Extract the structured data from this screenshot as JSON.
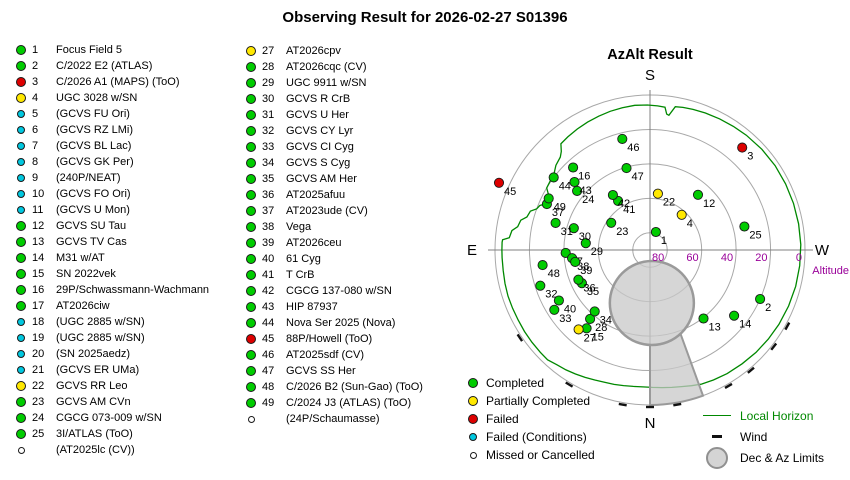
{
  "title": "Observing Result for 2026-02-27 S01396",
  "colors": {
    "completed": "#00CC00",
    "partial": "#FFE800",
    "failed": "#DD0000",
    "conditions": "#00C8E0",
    "missed": "#FFFFFF",
    "dot_border": "#1a1a1a",
    "horizon": "#008800",
    "grid": "#A8A8A8",
    "axis": "#808080",
    "altitude_text": "#990099",
    "limits_fill": "rgba(200,200,200,0.75)",
    "limits_stroke": "#9a9a9a"
  },
  "target_list": {
    "column1": [
      {
        "num": "1",
        "name": "Focus Field 5",
        "status": "completed"
      },
      {
        "num": "2",
        "name": "C/2022 E2 (ATLAS)",
        "status": "completed"
      },
      {
        "num": "3",
        "name": "C/2026 A1 (MAPS) (ToO)",
        "status": "failed"
      },
      {
        "num": "4",
        "name": "UGC 3028 w/SN",
        "status": "partial"
      },
      {
        "num": "5",
        "name": "(GCVS FU Ori)",
        "status": "conditions"
      },
      {
        "num": "6",
        "name": "(GCVS RZ LMi)",
        "status": "conditions"
      },
      {
        "num": "7",
        "name": "(GCVS BL Lac)",
        "status": "conditions"
      },
      {
        "num": "8",
        "name": "(GCVS GK Per)",
        "status": "conditions"
      },
      {
        "num": "9",
        "name": "(240P/NEAT)",
        "status": "conditions"
      },
      {
        "num": "10",
        "name": "(GCVS FO Ori)",
        "status": "conditions"
      },
      {
        "num": "11",
        "name": "(GCVS U Mon)",
        "status": "conditions"
      },
      {
        "num": "12",
        "name": "GCVS SU Tau",
        "status": "completed"
      },
      {
        "num": "13",
        "name": "GCVS TV Cas",
        "status": "completed"
      },
      {
        "num": "14",
        "name": "M31 w/AT",
        "status": "completed"
      },
      {
        "num": "15",
        "name": "SN 2022vek",
        "status": "completed"
      },
      {
        "num": "16",
        "name": "29P/Schwassmann-Wachmann",
        "status": "completed"
      },
      {
        "num": "17",
        "name": "AT2026ciw",
        "status": "completed"
      },
      {
        "num": "18",
        "name": "(UGC 2885 w/SN)",
        "status": "conditions"
      },
      {
        "num": "19",
        "name": "(UGC 2885 w/SN)",
        "status": "conditions"
      },
      {
        "num": "20",
        "name": "(SN 2025aedz)",
        "status": "conditions"
      },
      {
        "num": "21",
        "name": "(GCVS ER UMa)",
        "status": "conditions"
      },
      {
        "num": "22",
        "name": "GCVS RR Leo",
        "status": "partial"
      },
      {
        "num": "23",
        "name": "GCVS AM CVn",
        "status": "completed"
      },
      {
        "num": "24",
        "name": "CGCG 073-009 w/SN",
        "status": "completed"
      },
      {
        "num": "25",
        "name": "3I/ATLAS (ToO)",
        "status": "completed"
      },
      {
        "num": "",
        "name": "(AT2025lc (CV))",
        "status": "missed"
      }
    ],
    "column2": [
      {
        "num": "27",
        "name": "AT2026cpv",
        "status": "partial"
      },
      {
        "num": "28",
        "name": "AT2026cqc (CV)",
        "status": "completed"
      },
      {
        "num": "29",
        "name": "UGC 9911 w/SN",
        "status": "completed"
      },
      {
        "num": "30",
        "name": "GCVS R CrB",
        "status": "completed"
      },
      {
        "num": "31",
        "name": "GCVS U Her",
        "status": "completed"
      },
      {
        "num": "32",
        "name": "GCVS CY Lyr",
        "status": "completed"
      },
      {
        "num": "33",
        "name": "GCVS CI Cyg",
        "status": "completed"
      },
      {
        "num": "34",
        "name": "GCVS S Cyg",
        "status": "completed"
      },
      {
        "num": "35",
        "name": "GCVS AM Her",
        "status": "completed"
      },
      {
        "num": "36",
        "name": "AT2025afuu",
        "status": "completed"
      },
      {
        "num": "37",
        "name": "AT2023ude (CV)",
        "status": "completed"
      },
      {
        "num": "38",
        "name": "Vega",
        "status": "completed"
      },
      {
        "num": "39",
        "name": "AT2026ceu",
        "status": "completed"
      },
      {
        "num": "40",
        "name": "61 Cyg",
        "status": "completed"
      },
      {
        "num": "41",
        "name": "T CrB",
        "status": "completed"
      },
      {
        "num": "42",
        "name": "CGCG 137-080 w/SN",
        "status": "completed"
      },
      {
        "num": "43",
        "name": "HIP 87937",
        "status": "completed"
      },
      {
        "num": "44",
        "name": "Nova Ser 2025 (Nova)",
        "status": "completed"
      },
      {
        "num": "45",
        "name": "88P/Howell (ToO)",
        "status": "failed"
      },
      {
        "num": "46",
        "name": "AT2025sdf (CV)",
        "status": "completed"
      },
      {
        "num": "47",
        "name": "GCVS SS Her",
        "status": "completed"
      },
      {
        "num": "48",
        "name": "C/2026 B2 (Sun-Gao) (ToO)",
        "status": "completed"
      },
      {
        "num": "49",
        "name": "C/2024 J3 (ATLAS) (ToO)",
        "status": "completed"
      },
      {
        "num": "",
        "name": "(24P/Schaumasse)",
        "status": "missed"
      }
    ]
  },
  "legend_status": [
    {
      "label": "Completed",
      "status": "completed"
    },
    {
      "label": "Partially Completed",
      "status": "partial"
    },
    {
      "label": "Failed",
      "status": "failed"
    },
    {
      "label": "Failed (Conditions)",
      "status": "conditions"
    },
    {
      "label": "Missed or Cancelled",
      "status": "missed"
    }
  ],
  "legend_map": [
    {
      "label": "Local Horizon",
      "type": "horizon"
    },
    {
      "label": "Wind",
      "type": "wind"
    },
    {
      "label": "Dec & Az Limits",
      "type": "limits"
    }
  ],
  "chart_data": {
    "type": "scatter",
    "subtype": "polar-azalt-sky-plot",
    "title": "AzAlt Result",
    "compass": {
      "top": "S",
      "left": "E",
      "right": "W",
      "bottom": "N"
    },
    "altitude_axis": {
      "label": "Altitude",
      "ticks": [
        80,
        60,
        40,
        20,
        0
      ]
    },
    "points": [
      {
        "n": 1,
        "status": "completed",
        "az": 198,
        "alt": 79
      },
      {
        "n": 2,
        "status": "completed",
        "az": 294,
        "alt": 20
      },
      {
        "n": 3,
        "status": "failed",
        "az": 222,
        "alt": 10
      },
      {
        "n": 4,
        "status": "partial",
        "az": 222,
        "alt": 62.5
      },
      {
        "n": 12,
        "status": "completed",
        "az": 221,
        "alt": 47.5
      },
      {
        "n": 13,
        "status": "completed",
        "az": 322,
        "alt": 39.5
      },
      {
        "n": 14,
        "status": "completed",
        "az": 308,
        "alt": 28
      },
      {
        "n": 15,
        "status": "completed",
        "az": 39,
        "alt": 31.5
      },
      {
        "n": 16,
        "status": "completed",
        "az": 137,
        "alt": 24.5
      },
      {
        "n": 17,
        "status": "completed",
        "az": 88,
        "alt": 41
      },
      {
        "n": 22,
        "status": "partial",
        "az": 188,
        "alt": 57
      },
      {
        "n": 23,
        "status": "completed",
        "az": 125,
        "alt": 62.5
      },
      {
        "n": 24,
        "status": "completed",
        "az": 129,
        "alt": 35.5
      },
      {
        "n": 25,
        "status": "completed",
        "az": 256,
        "alt": 33.5
      },
      {
        "n": 27,
        "status": "partial",
        "az": 42,
        "alt": 28
      },
      {
        "n": 28,
        "status": "completed",
        "az": 41,
        "alt": 37
      },
      {
        "n": 29,
        "status": "completed",
        "az": 96,
        "alt": 52.5
      },
      {
        "n": 30,
        "status": "completed",
        "az": 106,
        "alt": 44
      },
      {
        "n": 31,
        "status": "completed",
        "az": 106,
        "alt": 33
      },
      {
        "n": 32,
        "status": "completed",
        "az": 72,
        "alt": 23
      },
      {
        "n": 33,
        "status": "completed",
        "az": 58,
        "alt": 24.5
      },
      {
        "n": 34,
        "status": "completed",
        "az": 42,
        "alt": 42
      },
      {
        "n": 35,
        "status": "completed",
        "az": 64,
        "alt": 46
      },
      {
        "n": 36,
        "status": "completed",
        "az": 67.5,
        "alt": 45
      },
      {
        "n": 37,
        "status": "completed",
        "az": 114,
        "alt": 24.5
      },
      {
        "n": 38,
        "status": "completed",
        "az": 84,
        "alt": 44.5
      },
      {
        "n": 39,
        "status": "completed",
        "az": 81,
        "alt": 46
      },
      {
        "n": 40,
        "status": "completed",
        "az": 61,
        "alt": 29.5
      },
      {
        "n": 41,
        "status": "completed",
        "az": 147,
        "alt": 56
      },
      {
        "n": 42,
        "status": "completed",
        "az": 146,
        "alt": 51.5
      },
      {
        "n": 43,
        "status": "completed",
        "az": 132,
        "alt": 31
      },
      {
        "n": 44,
        "status": "completed",
        "az": 127,
        "alt": 20
      },
      {
        "n": 45,
        "status": "failed",
        "az": 114,
        "alt": -6
      },
      {
        "n": 46,
        "status": "completed",
        "az": 166,
        "alt": 23.5
      },
      {
        "n": 47,
        "status": "completed",
        "az": 164,
        "alt": 40.5
      },
      {
        "n": 48,
        "status": "completed",
        "az": 82,
        "alt": 27
      },
      {
        "n": 49,
        "status": "completed",
        "az": 117,
        "alt": 24
      }
    ],
    "local_horizon_az_alt": [
      [
        90,
        4
      ],
      [
        93,
        4
      ],
      [
        94,
        4.2
      ],
      [
        95,
        8
      ],
      [
        98,
        9
      ],
      [
        100,
        12
      ],
      [
        103,
        13
      ],
      [
        105,
        16
      ],
      [
        108,
        17
      ],
      [
        110,
        20
      ],
      [
        112,
        21
      ],
      [
        114,
        24
      ],
      [
        118,
        23.5
      ],
      [
        121,
        20
      ],
      [
        125,
        19.5
      ],
      [
        129,
        18.5
      ],
      [
        132,
        16.5
      ],
      [
        136,
        15
      ],
      [
        138,
        13
      ],
      [
        140,
        9.5
      ],
      [
        144,
        8.8
      ],
      [
        149,
        8
      ],
      [
        154,
        7.4
      ],
      [
        159,
        6.8
      ],
      [
        164,
        6.2
      ],
      [
        169,
        5.8
      ],
      [
        174,
        5.5
      ],
      [
        179,
        5.8
      ],
      [
        183,
        6.2
      ],
      [
        186,
        6.6
      ],
      [
        187,
        10.5
      ],
      [
        188,
        11
      ],
      [
        190,
        5.5
      ],
      [
        193,
        5
      ],
      [
        197,
        4.6
      ],
      [
        202,
        4.2
      ],
      [
        208,
        3.8
      ],
      [
        214,
        3.4
      ],
      [
        220,
        3
      ],
      [
        228,
        2.6
      ],
      [
        236,
        2.4
      ],
      [
        244,
        2.4
      ],
      [
        252,
        2.4
      ],
      [
        260,
        2.4
      ],
      [
        268,
        2.4
      ],
      [
        276,
        2.6
      ],
      [
        284,
        2.8
      ],
      [
        292,
        3.2
      ],
      [
        300,
        3.6
      ],
      [
        307,
        4
      ],
      [
        314,
        4.4
      ],
      [
        321,
        5
      ],
      [
        328,
        5.4
      ],
      [
        334,
        6
      ],
      [
        339,
        6.6
      ],
      [
        343,
        7.6
      ],
      [
        347,
        8.6
      ],
      [
        351,
        9.2
      ],
      [
        355,
        9.8
      ],
      [
        359,
        10.2
      ],
      [
        3,
        10.4
      ],
      [
        7,
        10.2
      ],
      [
        11,
        9.8
      ],
      [
        15,
        9.2
      ],
      [
        19,
        8.8
      ],
      [
        23,
        8
      ],
      [
        27,
        7
      ],
      [
        31,
        6
      ],
      [
        35,
        5
      ],
      [
        39,
        4.2
      ],
      [
        43,
        2.8
      ],
      [
        47,
        2.9
      ],
      [
        52,
        3
      ],
      [
        57,
        3.1
      ],
      [
        62,
        3.3
      ],
      [
        67,
        3.3
      ],
      [
        72,
        3.3
      ],
      [
        77,
        3.6
      ],
      [
        82,
        3.9
      ],
      [
        87,
        4
      ]
    ],
    "wind_ticks_az": [
      56,
      31,
      10,
      0,
      350,
      330,
      320,
      308,
      299
    ],
    "dec_az_limits": {
      "circle": {
        "az": 358,
        "alt": 59.2,
        "radius_deg": 24.4
      },
      "wedge_az_from": 340,
      "wedge_az_to": 360
    }
  }
}
